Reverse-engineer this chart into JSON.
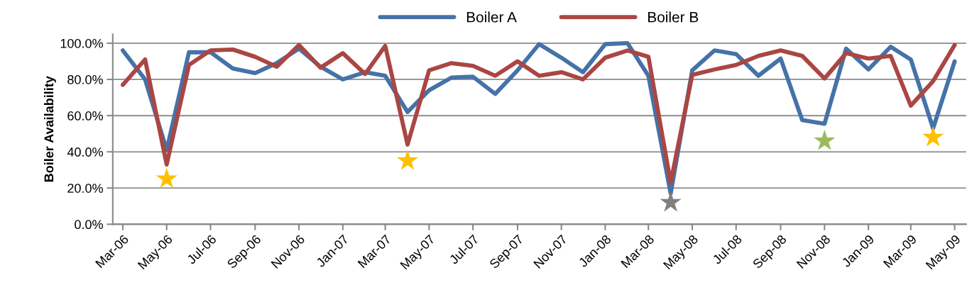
{
  "chart_data": {
    "type": "line",
    "ylabel": "Boiler Availability",
    "legend": "top",
    "grid": "y",
    "marker": "none",
    "line_style": "solid",
    "x": [
      "2006-03",
      "2006-04",
      "2006-05",
      "2006-06",
      "2006-07",
      "2006-08",
      "2006-09",
      "2006-10",
      "2006-11",
      "2006-12",
      "2007-01",
      "2007-02",
      "2007-03",
      "2007-04",
      "2007-05",
      "2007-06",
      "2007-07",
      "2007-08",
      "2007-09",
      "2007-10",
      "2007-11",
      "2007-12",
      "2008-01",
      "2008-02",
      "2008-03",
      "2008-04",
      "2008-05",
      "2008-06",
      "2008-07",
      "2008-08",
      "2008-09",
      "2008-10",
      "2008-11",
      "2008-12",
      "2009-01",
      "2009-02",
      "2009-03",
      "2009-04",
      "2009-05"
    ],
    "xlim": [
      "2006-02-15",
      "2009-05-17"
    ],
    "xticks": [
      {
        "value": "2006-03",
        "label": "Mar-06"
      },
      {
        "value": "2006-05",
        "label": "May-06"
      },
      {
        "value": "2006-07",
        "label": "Jul-06"
      },
      {
        "value": "2006-09",
        "label": "Sep-06"
      },
      {
        "value": "2006-11",
        "label": "Nov-06"
      },
      {
        "value": "2007-01",
        "label": "Jan-07"
      },
      {
        "value": "2007-03",
        "label": "Mar-07"
      },
      {
        "value": "2007-05",
        "label": "May-07"
      },
      {
        "value": "2007-07",
        "label": "Jul-07"
      },
      {
        "value": "2007-09",
        "label": "Sep-07"
      },
      {
        "value": "2007-11",
        "label": "Nov-07"
      },
      {
        "value": "2008-01",
        "label": "Jan-08"
      },
      {
        "value": "2008-03",
        "label": "Mar-08"
      },
      {
        "value": "2008-05",
        "label": "May-08"
      },
      {
        "value": "2008-07",
        "label": "Jul-08"
      },
      {
        "value": "2008-09",
        "label": "Sep-08"
      },
      {
        "value": "2008-11",
        "label": "Nov-08"
      },
      {
        "value": "2009-01",
        "label": "Jan-09"
      },
      {
        "value": "2009-03",
        "label": "Mar-09"
      },
      {
        "value": "2009-05",
        "label": "May-09"
      }
    ],
    "ylim": [
      0,
      105
    ],
    "yticks": [
      {
        "value": 0,
        "label": "0.0%"
      },
      {
        "value": 20,
        "label": "20.0%"
      },
      {
        "value": 40,
        "label": "40.0%"
      },
      {
        "value": 60,
        "label": "60.0%"
      },
      {
        "value": 80,
        "label": "80.0%"
      },
      {
        "value": 100,
        "label": "100.0%"
      }
    ],
    "series": [
      {
        "name": "Boiler A",
        "color": "#4572a7",
        "values": [
          96,
          80,
          41,
          95,
          95,
          86,
          83.5,
          89,
          97,
          87,
          80,
          84,
          82,
          62,
          74,
          81,
          81.5,
          72,
          85,
          99.5,
          92,
          84,
          99.5,
          100,
          82,
          17,
          85,
          96,
          94,
          82,
          91.5,
          57.5,
          55.5,
          97,
          85.5,
          98,
          91,
          53,
          90
        ]
      },
      {
        "name": "Boiler B",
        "color": "#aa4643",
        "values": [
          77,
          91,
          33,
          88,
          96,
          96.5,
          92.5,
          87,
          99,
          86.5,
          94.5,
          83,
          98.5,
          44,
          85,
          89,
          87.5,
          82,
          90,
          82,
          84,
          80,
          92,
          96,
          92.5,
          23,
          82.5,
          85.5,
          88,
          93,
          96,
          93,
          80.5,
          94.5,
          91.5,
          93,
          65.5,
          79,
          99
        ]
      },
      {
        "type": "scatter",
        "marker": "star",
        "x": [
          "2006-05",
          "2007-04",
          "2008-04",
          "2008-11",
          "2009-04"
        ],
        "values": [
          25,
          35,
          12,
          46,
          48
        ],
        "colors": [
          "#ffc000",
          "#ffc000",
          "#808080",
          "#9bbb59",
          "#ffc000"
        ]
      }
    ]
  }
}
